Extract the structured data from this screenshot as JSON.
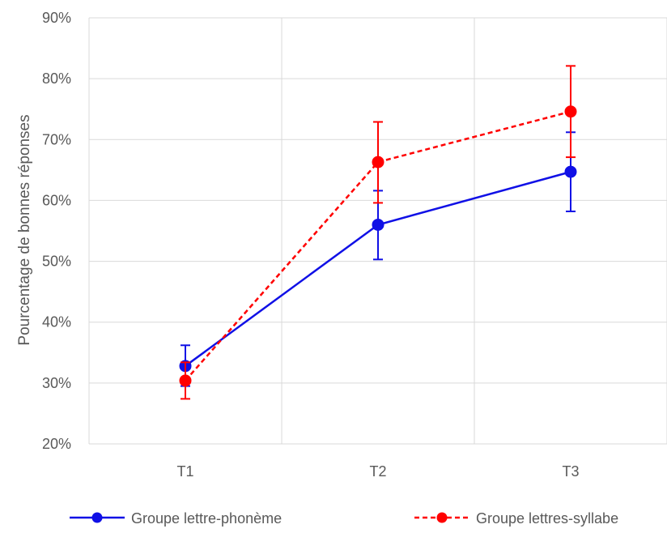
{
  "chart_data": {
    "type": "line",
    "title": "",
    "xlabel": "",
    "ylabel": "Pourcentage de bonnes réponses",
    "categories": [
      "T1",
      "T2",
      "T3"
    ],
    "ylim": [
      20,
      90
    ],
    "yticks": [
      20,
      30,
      40,
      50,
      60,
      70,
      80,
      90
    ],
    "y_tick_labels": [
      "20%",
      "30%",
      "40%",
      "50%",
      "60%",
      "70%",
      "80%",
      "90%"
    ],
    "grid": "both",
    "legend_position": "bottom",
    "series": [
      {
        "name": "Groupe lettre-phonème",
        "values": [
          32.8,
          56.0,
          64.7
        ],
        "error_low": [
          29.5,
          50.3,
          58.2
        ],
        "error_high": [
          36.2,
          61.6,
          71.2
        ],
        "color": "#1010e6",
        "line_style": "solid",
        "marker": "circle"
      },
      {
        "name": "Groupe lettres-syllabe",
        "values": [
          30.4,
          66.3,
          74.6
        ],
        "error_low": [
          27.4,
          59.6,
          67.1
        ],
        "error_high": [
          33.4,
          72.9,
          82.1
        ],
        "color": "#ff0000",
        "line_style": "dashed",
        "marker": "circle"
      }
    ]
  }
}
